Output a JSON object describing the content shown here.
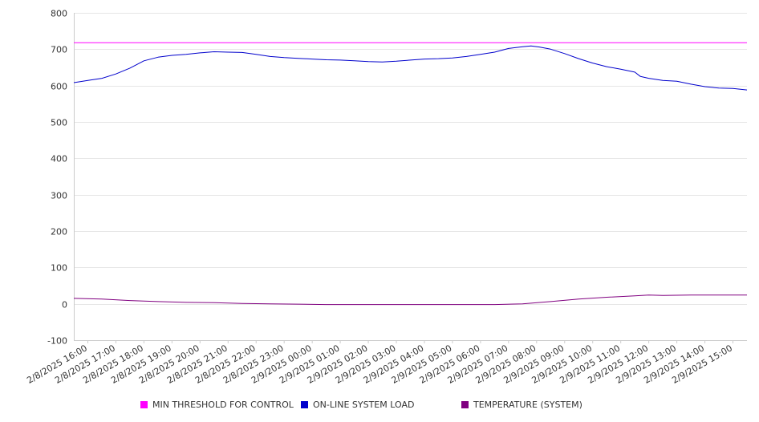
{
  "chart_data": {
    "type": "line",
    "y_ticks": [
      "800",
      "700",
      "600",
      "500",
      "400",
      "300",
      "200",
      "100",
      "0",
      "-100"
    ],
    "ylim": [
      -100,
      800
    ],
    "x_ticks": [
      "2/8/2025 16:00",
      "2/8/2025 17:00",
      "2/8/2025 18:00",
      "2/8/2025 19:00",
      "2/8/2025 20:00",
      "2/8/2025 21:00",
      "2/8/2025 22:00",
      "2/8/2025 23:00",
      "2/9/2025 00:00",
      "2/9/2025 01:00",
      "2/9/2025 02:00",
      "2/9/2025 03:00",
      "2/9/2025 04:00",
      "2/9/2025 05:00",
      "2/9/2025 06:00",
      "2/9/2025 07:00",
      "2/9/2025 08:00",
      "2/9/2025 09:00",
      "2/9/2025 10:00",
      "2/9/2025 11:00",
      "2/9/2025 12:00",
      "2/9/2025 13:00",
      "2/9/2025 14:00",
      "2/9/2025 15:00"
    ],
    "x_hours": [
      0,
      24
    ],
    "grid": true,
    "legend_position": "bottom",
    "series": [
      {
        "name": "MIN THRESHOLD FOR CONTROL",
        "color": "#ff00ff",
        "points": [
          [
            0,
            718
          ],
          [
            24,
            718
          ]
        ]
      },
      {
        "name": "ON-LINE SYSTEM LOAD",
        "color": "#0000cc",
        "points": [
          [
            0,
            608
          ],
          [
            0.5,
            614
          ],
          [
            1,
            620
          ],
          [
            1.5,
            632
          ],
          [
            2,
            648
          ],
          [
            2.5,
            668
          ],
          [
            3,
            678
          ],
          [
            3.5,
            683
          ],
          [
            4,
            686
          ],
          [
            4.5,
            690
          ],
          [
            5,
            693
          ],
          [
            5.5,
            692
          ],
          [
            6,
            691
          ],
          [
            6.5,
            686
          ],
          [
            7,
            680
          ],
          [
            7.5,
            677
          ],
          [
            8,
            675
          ],
          [
            8.5,
            673
          ],
          [
            9,
            671
          ],
          [
            9.5,
            670
          ],
          [
            10,
            668
          ],
          [
            10.5,
            666
          ],
          [
            11,
            665
          ],
          [
            11.5,
            667
          ],
          [
            12,
            670
          ],
          [
            12.5,
            673
          ],
          [
            13,
            674
          ],
          [
            13.5,
            676
          ],
          [
            14,
            680
          ],
          [
            14.5,
            686
          ],
          [
            15,
            692
          ],
          [
            15.5,
            702
          ],
          [
            16,
            707
          ],
          [
            16.3,
            709
          ],
          [
            16.6,
            706
          ],
          [
            17,
            700
          ],
          [
            17.5,
            688
          ],
          [
            18,
            674
          ],
          [
            18.5,
            662
          ],
          [
            19,
            652
          ],
          [
            19.5,
            645
          ],
          [
            20,
            637
          ],
          [
            20.2,
            625
          ],
          [
            20.5,
            620
          ],
          [
            21,
            614
          ],
          [
            21.5,
            612
          ],
          [
            22,
            604
          ],
          [
            22.5,
            597
          ],
          [
            23,
            593
          ],
          [
            23.5,
            592
          ],
          [
            24,
            588
          ]
        ]
      },
      {
        "name": "TEMPERATURE (SYSTEM)",
        "color": "#800080",
        "points": [
          [
            0,
            15
          ],
          [
            1,
            13
          ],
          [
            2,
            9
          ],
          [
            3,
            6
          ],
          [
            4,
            4
          ],
          [
            5,
            3
          ],
          [
            6,
            1
          ],
          [
            7,
            0
          ],
          [
            8,
            -1
          ],
          [
            9,
            -2
          ],
          [
            10,
            -2
          ],
          [
            11,
            -2
          ],
          [
            12,
            -2
          ],
          [
            13,
            -2
          ],
          [
            14,
            -2
          ],
          [
            15,
            -2
          ],
          [
            16,
            0
          ],
          [
            17,
            6
          ],
          [
            18,
            13
          ],
          [
            19,
            18
          ],
          [
            20,
            22
          ],
          [
            20.5,
            24
          ],
          [
            21,
            23
          ],
          [
            22,
            24
          ],
          [
            23,
            24
          ],
          [
            24,
            24
          ]
        ]
      }
    ]
  }
}
